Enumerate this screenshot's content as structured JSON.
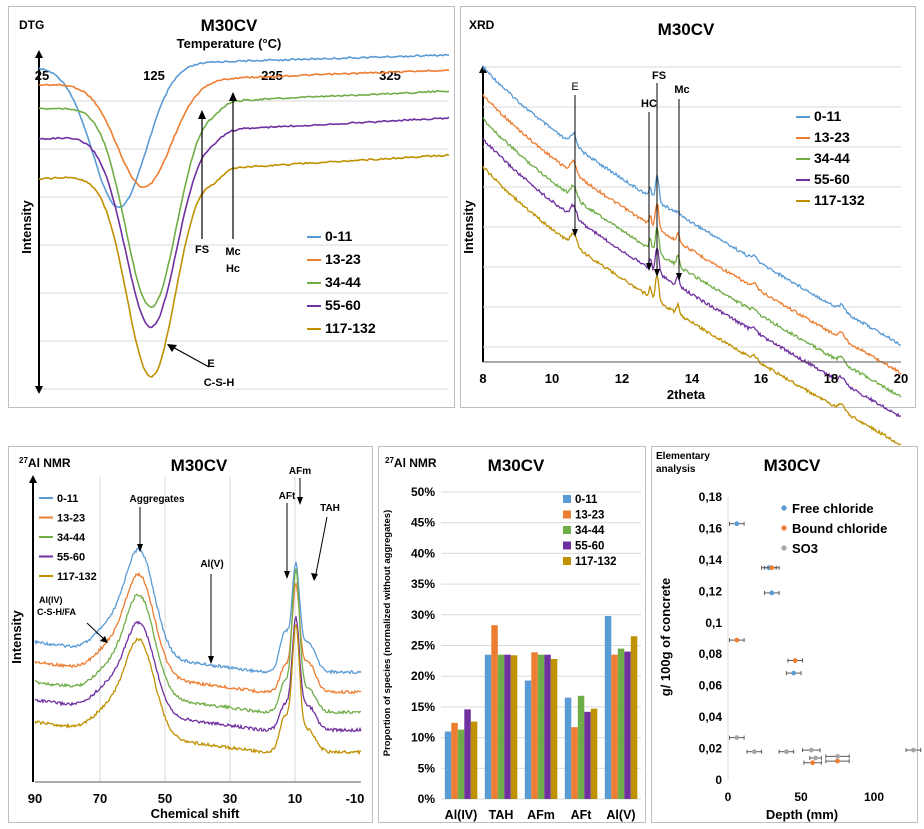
{
  "series_names": [
    "0-11",
    "13-23",
    "34-44",
    "55-60",
    "117-132"
  ],
  "colors": {
    "0-11": "#5b9bd5",
    "13-23": "#ed7d31",
    "34-44": "#70ad47",
    "55-60": "#7030a0",
    "117-132": "#bf9000",
    "gray": "#a5a5a5"
  },
  "dtg": {
    "corner": "DTG",
    "title": "M30CV",
    "xlabel": "Temperature  (°C)",
    "ylabel": "Intensity",
    "xticks": [
      "25",
      "125",
      "225",
      "325"
    ],
    "annotations": {
      "fs": "FS",
      "mc": "Mc",
      "hc": "Hc",
      "e": "E",
      "csh": "C-S-H"
    }
  },
  "xrd": {
    "corner": "XRD",
    "title": "M30CV",
    "xlabel": "2theta",
    "ylabel": "Intensity",
    "xticks": [
      "8",
      "10",
      "12",
      "14",
      "16",
      "18",
      "20"
    ],
    "annotations": {
      "e": "E",
      "fs": "FS",
      "hc": "HC",
      "mc": "Mc"
    }
  },
  "nmr": {
    "corner": "27Al NMR",
    "title": "M30CV",
    "xlabel": "Chemical shift",
    "ylabel": "Intensity",
    "xticks": [
      "90",
      "70",
      "50",
      "30",
      "10",
      "-10"
    ],
    "annotations": {
      "agg": "Aggregates",
      "alv": "Al(V)",
      "aft": "AFt",
      "afm": "AFm",
      "tah": "TAH",
      "aliv1": "Al(IV)",
      "aliv2": "C-S-H/FA"
    }
  },
  "bar": {
    "corner": "27Al NMR",
    "title": "M30CV",
    "ylabel": "Proportion of species (normalized without aggregates)",
    "yticks": [
      "0%",
      "5%",
      "10%",
      "15%",
      "20%",
      "25%",
      "30%",
      "35%",
      "40%",
      "45%",
      "50%"
    ]
  },
  "ea": {
    "corner1": "Elementary",
    "corner2": "analysis",
    "title": "M30CV",
    "xlabel": "Depth (mm)",
    "ylabel": "g/ 100g of concrete",
    "yticks": [
      "0",
      "0,02",
      "0,04",
      "0,06",
      "0,08",
      "0,1",
      "0,12",
      "0,14",
      "0,16",
      "0,18"
    ],
    "xticks": [
      "0",
      "50",
      "100"
    ],
    "legend": [
      "Free chloride",
      "Bound chloride",
      "SO3"
    ]
  },
  "chart_data": [
    {
      "type": "bar",
      "title": "M30CV",
      "ylabel": "Proportion of species (normalized without aggregates)",
      "categories": [
        "Al(IV)",
        "TAH",
        "AFm",
        "AFt",
        "Al(V)"
      ],
      "ylim": [
        0,
        0.5
      ],
      "series": [
        {
          "name": "0-11",
          "values": [
            0.11,
            0.235,
            0.193,
            0.165,
            0.298
          ]
        },
        {
          "name": "13-23",
          "values": [
            0.124,
            0.283,
            0.239,
            0.117,
            0.235
          ]
        },
        {
          "name": "34-44",
          "values": [
            0.113,
            0.235,
            0.235,
            0.168,
            0.245
          ]
        },
        {
          "name": "55-60",
          "values": [
            0.146,
            0.235,
            0.235,
            0.142,
            0.24
          ]
        },
        {
          "name": "117-132",
          "values": [
            0.126,
            0.234,
            0.228,
            0.147,
            0.265
          ]
        }
      ]
    },
    {
      "type": "scatter",
      "title": "M30CV",
      "xlabel": "Depth (mm)",
      "ylabel": "g/ 100g of concrete",
      "ylim": [
        0,
        0.18
      ],
      "series": [
        {
          "name": "Free chloride",
          "points": [
            [
              6,
              0.163,
              5
            ],
            [
              30,
              0.119,
              5
            ],
            [
              28,
              0.135,
              5
            ],
            [
              45,
              0.068,
              5
            ]
          ]
        },
        {
          "name": "Bound chloride",
          "points": [
            [
              6,
              0.089,
              5
            ],
            [
              30,
              0.135,
              5
            ],
            [
              46,
              0.076,
              5
            ],
            [
              58,
              0.011,
              6
            ],
            [
              75,
              0.012,
              8
            ]
          ]
        },
        {
          "name": "SO3",
          "points": [
            [
              6,
              0.027,
              5
            ],
            [
              18,
              0.018,
              5
            ],
            [
              40,
              0.018,
              5
            ],
            [
              57,
              0.019,
              6
            ],
            [
              60,
              0.014,
              4
            ],
            [
              75,
              0.015,
              8
            ],
            [
              127,
              0.019,
              5
            ]
          ]
        }
      ]
    },
    {
      "type": "line",
      "title": "M30CV",
      "xlabel": "Temperature  (°C)",
      "ylabel": "Intensity",
      "x": [
        25,
        325
      ],
      "series": [
        {
          "name": "0-11"
        },
        {
          "name": "13-23"
        },
        {
          "name": "34-44"
        },
        {
          "name": "55-60"
        },
        {
          "name": "117-132"
        }
      ]
    },
    {
      "type": "line",
      "title": "M30CV",
      "xlabel": "2theta",
      "ylabel": "Intensity",
      "x": [
        8,
        20
      ],
      "series": [
        {
          "name": "0-11"
        },
        {
          "name": "13-23"
        },
        {
          "name": "34-44"
        },
        {
          "name": "55-60"
        },
        {
          "name": "117-132"
        }
      ]
    },
    {
      "type": "line",
      "title": "M30CV",
      "xlabel": "Chemical shift",
      "ylabel": "Intensity",
      "x": [
        90,
        -10
      ],
      "series": [
        {
          "name": "0-11"
        },
        {
          "name": "13-23"
        },
        {
          "name": "34-44"
        },
        {
          "name": "55-60"
        },
        {
          "name": "117-132"
        }
      ]
    }
  ]
}
